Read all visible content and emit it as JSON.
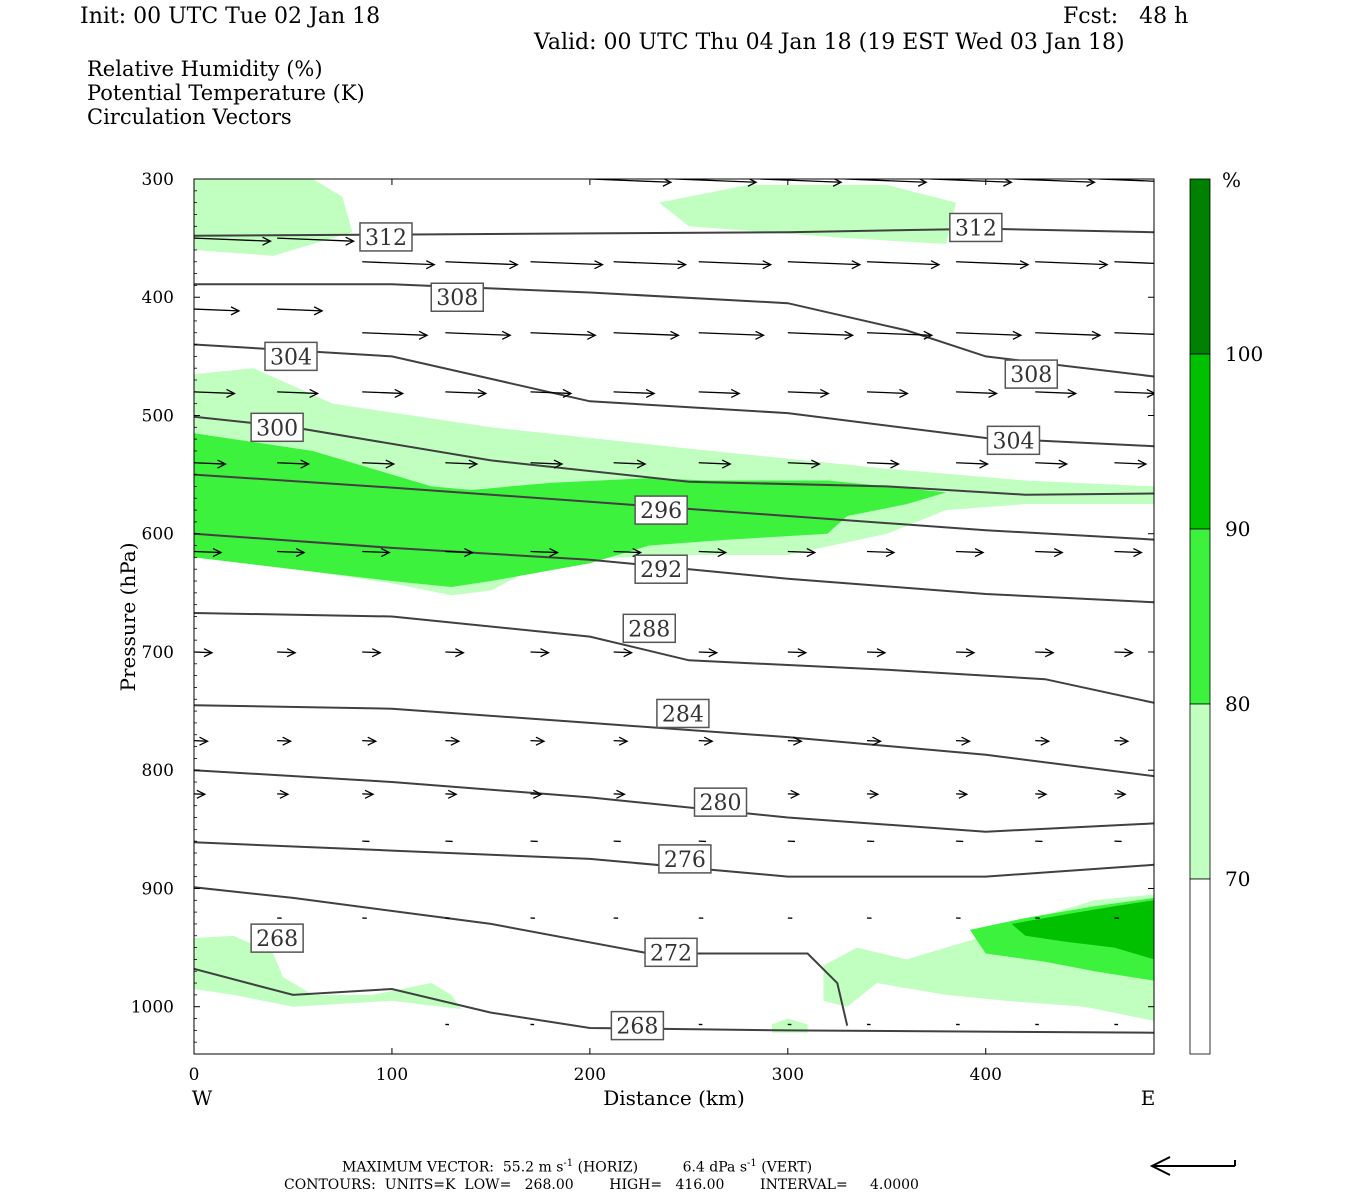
{
  "header": {
    "init": "Init: 00 UTC Tue 02 Jan 18",
    "fcst": "Fcst:   48 h",
    "valid": "Valid: 00 UTC Thu 04 Jan 18 (19 EST Wed 03 Jan 18)"
  },
  "legend_lines": [
    {
      "text": "Relative Humidity (%)",
      "color": "#000000"
    },
    {
      "text": "Potential Temperature (K)",
      "color": "#808080"
    },
    {
      "text": "Circulation Vectors",
      "color": "#000000"
    }
  ],
  "chart_data": {
    "type": "cross-section",
    "xlabel": "Distance (km)",
    "ylabel": "Pressure (hPa)",
    "x_range": [
      0,
      485
    ],
    "y_range": [
      300,
      1040
    ],
    "x_ticks": [
      "0",
      "100",
      "200",
      "300",
      "400"
    ],
    "y_ticks": [
      "300",
      "400",
      "500",
      "600",
      "700",
      "800",
      "900",
      "1000"
    ],
    "x_end_labels": {
      "left": "W",
      "right": "E"
    },
    "colorbar": {
      "unit": "%",
      "levels": [
        "70",
        "80",
        "90",
        "100"
      ],
      "colors": [
        "#ffffff",
        "#c0ffc0",
        "#3df23d",
        "#00c000",
        "#008000"
      ]
    },
    "theta_contours": [
      {
        "label": "312",
        "points": [
          [
            0,
            348
          ],
          [
            100,
            347
          ],
          [
            200,
            346
          ],
          [
            300,
            345
          ],
          [
            400,
            342
          ],
          [
            485,
            345
          ]
        ],
        "label_at": [
          [
            97,
            349
          ],
          [
            395,
            341
          ]
        ]
      },
      {
        "label": "308",
        "points": [
          [
            0,
            389
          ],
          [
            100,
            389
          ],
          [
            200,
            396
          ],
          [
            300,
            405
          ],
          [
            360,
            428
          ],
          [
            400,
            450
          ],
          [
            485,
            467
          ]
        ],
        "label_at": [
          [
            133,
            400
          ],
          [
            423,
            465
          ]
        ]
      },
      {
        "label": "304",
        "points": [
          [
            0,
            440
          ],
          [
            100,
            450
          ],
          [
            200,
            488
          ],
          [
            300,
            498
          ],
          [
            400,
            519
          ],
          [
            485,
            526
          ]
        ],
        "label_at": [
          [
            49,
            450
          ],
          [
            414,
            521
          ]
        ]
      },
      {
        "label": "300",
        "points": [
          [
            0,
            501
          ],
          [
            50,
            510
          ],
          [
            150,
            538
          ],
          [
            250,
            556
          ],
          [
            350,
            560
          ],
          [
            420,
            567
          ],
          [
            485,
            566
          ]
        ],
        "label_at": [
          [
            42,
            510
          ]
        ]
      },
      {
        "label": "296",
        "points": [
          [
            0,
            550
          ],
          [
            100,
            561
          ],
          [
            200,
            573
          ],
          [
            300,
            585
          ],
          [
            400,
            597
          ],
          [
            485,
            605
          ]
        ],
        "label_at": [
          [
            236,
            580
          ]
        ]
      },
      {
        "label": "292",
        "points": [
          [
            0,
            600
          ],
          [
            100,
            612
          ],
          [
            200,
            622
          ],
          [
            300,
            638
          ],
          [
            400,
            651
          ],
          [
            485,
            658
          ]
        ],
        "label_at": [
          [
            236,
            630
          ]
        ]
      },
      {
        "label": "288",
        "points": [
          [
            0,
            667
          ],
          [
            100,
            670
          ],
          [
            200,
            687
          ],
          [
            250,
            707
          ],
          [
            350,
            715
          ],
          [
            430,
            723
          ],
          [
            485,
            743
          ]
        ],
        "label_at": [
          [
            230,
            680
          ]
        ]
      },
      {
        "label": "284",
        "points": [
          [
            0,
            745
          ],
          [
            100,
            748
          ],
          [
            200,
            760
          ],
          [
            300,
            772
          ],
          [
            400,
            787
          ],
          [
            485,
            805
          ]
        ],
        "label_at": [
          [
            247,
            752
          ]
        ]
      },
      {
        "label": "280",
        "points": [
          [
            0,
            800
          ],
          [
            100,
            810
          ],
          [
            200,
            823
          ],
          [
            300,
            840
          ],
          [
            400,
            852
          ],
          [
            485,
            845
          ]
        ],
        "label_at": [
          [
            266,
            827
          ]
        ]
      },
      {
        "label": "276",
        "points": [
          [
            0,
            861
          ],
          [
            100,
            868
          ],
          [
            200,
            875
          ],
          [
            300,
            890
          ],
          [
            400,
            890
          ],
          [
            485,
            880
          ]
        ],
        "label_at": [
          [
            248,
            875
          ]
        ]
      },
      {
        "label": "272",
        "points": [
          [
            0,
            899
          ],
          [
            50,
            908
          ],
          [
            150,
            930
          ],
          [
            230,
            955
          ],
          [
            310,
            955
          ],
          [
            325,
            980
          ],
          [
            330,
            1016
          ]
        ],
        "label_at": [
          [
            241,
            954
          ]
        ]
      },
      {
        "label": "268",
        "points": [
          [
            0,
            968
          ],
          [
            50,
            990
          ],
          [
            100,
            985
          ],
          [
            150,
            1005
          ],
          [
            200,
            1018
          ],
          [
            300,
            1020
          ],
          [
            485,
            1022
          ]
        ],
        "label_at": [
          [
            42,
            942
          ],
          [
            224,
            1016
          ]
        ]
      }
    ],
    "max_vector": "MAXIMUM VECTOR:  55.2 m s",
    "max_vector_horiz": "(HORIZ)",
    "max_vector_vert": "6.4 dPa s",
    "max_vector_vert_unit": "(VERT)",
    "contours_line": "CONTOURS:  UNITS=K  LOW=   268.00        HIGH=   416.00        INTERVAL=     4.0000"
  }
}
